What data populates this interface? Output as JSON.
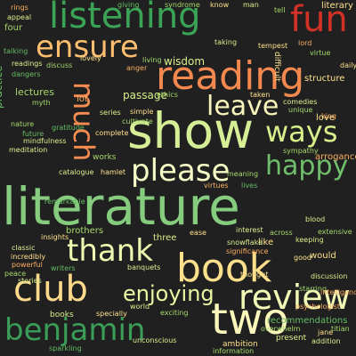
{
  "words": [
    {
      "text": "literature",
      "color": "#86cc7f"
    },
    {
      "text": "show",
      "color": "#d6ee95"
    },
    {
      "text": "reading",
      "color": "#f4894f"
    },
    {
      "text": "listening",
      "color": "#3aa356"
    },
    {
      "text": "book",
      "color": "#fde08c"
    },
    {
      "text": "fun",
      "color": "#d13127"
    },
    {
      "text": "ensure",
      "color": "#fdbf6f"
    },
    {
      "text": "two",
      "color": "#fbf7bb"
    },
    {
      "text": "club",
      "color": "#fdd98b"
    },
    {
      "text": "review",
      "color": "#f2f9b5"
    },
    {
      "text": "benjamin",
      "color": "#3a9e58"
    },
    {
      "text": "thank",
      "color": "#eff8b0"
    },
    {
      "text": "please",
      "color": "#f7fcc6"
    },
    {
      "text": "much",
      "color": "#f88d52"
    },
    {
      "text": "happy",
      "color": "#6fbe6b"
    },
    {
      "text": "ways",
      "color": "#d9ef8b"
    },
    {
      "text": "leave",
      "color": "#f9f4b9"
    },
    {
      "text": "enjoying",
      "color": "#e9f6a2"
    },
    {
      "text": "giving",
      "color": "#66bd63"
    },
    {
      "text": "syndrome",
      "color": "#a6d96a"
    },
    {
      "text": "know",
      "color": "#fee08b"
    },
    {
      "text": "man",
      "color": "#d9ef8b"
    },
    {
      "text": "tell",
      "color": "#a6d96a"
    },
    {
      "text": "literary",
      "color": "#fee08b"
    },
    {
      "text": "rings",
      "color": "#fdae61"
    },
    {
      "text": "appeal",
      "color": "#d9ef8b"
    },
    {
      "text": "four",
      "color": "#a6d96a"
    },
    {
      "text": "talking",
      "color": "#66bd63"
    },
    {
      "text": "tempest",
      "color": "#fee08b"
    },
    {
      "text": "lord",
      "color": "#fdae61"
    },
    {
      "text": "taking",
      "color": "#d9ef8b"
    },
    {
      "text": "virtue",
      "color": "#a6d96a"
    },
    {
      "text": "difficult",
      "color": "#fee08b"
    },
    {
      "text": "readings",
      "color": "#d9ef8b"
    },
    {
      "text": "discuss",
      "color": "#a6d96a"
    },
    {
      "text": "dangers",
      "color": "#66bd63"
    },
    {
      "text": "lovely",
      "color": "#fee08b"
    },
    {
      "text": "wisdom",
      "color": "#d9ef8b"
    },
    {
      "text": "living",
      "color": "#a6d96a"
    },
    {
      "text": "anger",
      "color": "#fdae61"
    },
    {
      "text": "structure",
      "color": "#fee08b"
    },
    {
      "text": "lectures",
      "color": "#a6d96a"
    },
    {
      "text": "passage",
      "color": "#d9ef8b"
    },
    {
      "text": "practice",
      "color": "#66bd63"
    },
    {
      "text": "taken",
      "color": "#fee08b"
    },
    {
      "text": "comedies",
      "color": "#d9ef8b"
    },
    {
      "text": "unique",
      "color": "#a6d96a"
    },
    {
      "text": "king",
      "color": "#fdae61"
    },
    {
      "text": "love",
      "color": "#fee08b"
    },
    {
      "text": "ethics",
      "color": "#a6d96a"
    },
    {
      "text": "series",
      "color": "#d9ef8b"
    },
    {
      "text": "simple",
      "color": "#fee08b"
    },
    {
      "text": "cultivate",
      "color": "#a6d96a"
    },
    {
      "text": "gratitude",
      "color": "#66bd63"
    },
    {
      "text": "mindfulness",
      "color": "#d9ef8b"
    },
    {
      "text": "complete",
      "color": "#fee08b"
    },
    {
      "text": "works",
      "color": "#a6d96a"
    },
    {
      "text": "arrogance",
      "color": "#fdae61"
    },
    {
      "text": "sympathy",
      "color": "#a6d96a"
    },
    {
      "text": "catalogue",
      "color": "#d9ef8b"
    },
    {
      "text": "hamlet",
      "color": "#fee08b"
    },
    {
      "text": "meaning",
      "color": "#a6d96a"
    },
    {
      "text": "virtues",
      "color": "#fdae61"
    },
    {
      "text": "lives",
      "color": "#66bd63"
    },
    {
      "text": "blood",
      "color": "#d9ef8b"
    },
    {
      "text": "brothers",
      "color": "#a6d96a"
    },
    {
      "text": "three",
      "color": "#d9ef8b"
    },
    {
      "text": "ease",
      "color": "#fee08b"
    },
    {
      "text": "interest",
      "color": "#d9ef8b"
    },
    {
      "text": "like",
      "color": "#fee08b"
    },
    {
      "text": "across",
      "color": "#a6d96a"
    },
    {
      "text": "keeping",
      "color": "#d9ef8b"
    },
    {
      "text": "extensive",
      "color": "#a6d96a"
    },
    {
      "text": "insights",
      "color": "#fee08b"
    },
    {
      "text": "snowflake",
      "color": "#d9ef8b"
    },
    {
      "text": "significance",
      "color": "#fdae61"
    },
    {
      "text": "good",
      "color": "#fee08b"
    },
    {
      "text": "writers",
      "color": "#66bd63"
    },
    {
      "text": "books",
      "color": "#d9ef8b"
    },
    {
      "text": "would",
      "color": "#fee08b"
    },
    {
      "text": "discussion",
      "color": "#d9ef8b"
    },
    {
      "text": "starring",
      "color": "#a6d96a"
    },
    {
      "text": "thought",
      "color": "#fee08b"
    },
    {
      "text": "intelligence",
      "color": "#fdae61"
    },
    {
      "text": "banquets",
      "color": "#d9ef8b"
    },
    {
      "text": "specially",
      "color": "#fee08b"
    },
    {
      "text": "world",
      "color": "#d9ef8b"
    },
    {
      "text": "exciting",
      "color": "#a6d96a"
    },
    {
      "text": "sparkling",
      "color": "#66bd63"
    },
    {
      "text": "unconscious",
      "color": "#d9ef8b"
    },
    {
      "text": "ambition",
      "color": "#fee08b"
    },
    {
      "text": "information",
      "color": "#a6d96a"
    },
    {
      "text": "present",
      "color": "#d9ef8b"
    },
    {
      "text": "jane",
      "color": "#fee08b"
    },
    {
      "text": "titian",
      "color": "#a6d96a"
    },
    {
      "text": "addition",
      "color": "#d9ef8b"
    },
    {
      "text": "recommendations",
      "color": "#66bd63"
    },
    {
      "text": "psychologist",
      "color": "#fdae61"
    },
    {
      "text": "overwhelm",
      "color": "#a6d96a"
    },
    {
      "text": "incredibly",
      "color": "#fee08b"
    },
    {
      "text": "powerful",
      "color": "#fdae61"
    },
    {
      "text": "classic",
      "color": "#d9ef8b"
    },
    {
      "text": "peace",
      "color": "#a6d96a"
    },
    {
      "text": "stories",
      "color": "#d9ef8b"
    },
    {
      "text": "remarkable",
      "color": "#66bd63"
    },
    {
      "text": "daily",
      "color": "#fee08b"
    },
    {
      "text": "nature",
      "color": "#a6d96a"
    },
    {
      "text": "future",
      "color": "#66bd63"
    },
    {
      "text": "meditation",
      "color": "#d9ef8b"
    },
    {
      "text": "lot",
      "color": "#fdae61"
    },
    {
      "text": "myth",
      "color": "#a6d96a"
    }
  ]
}
